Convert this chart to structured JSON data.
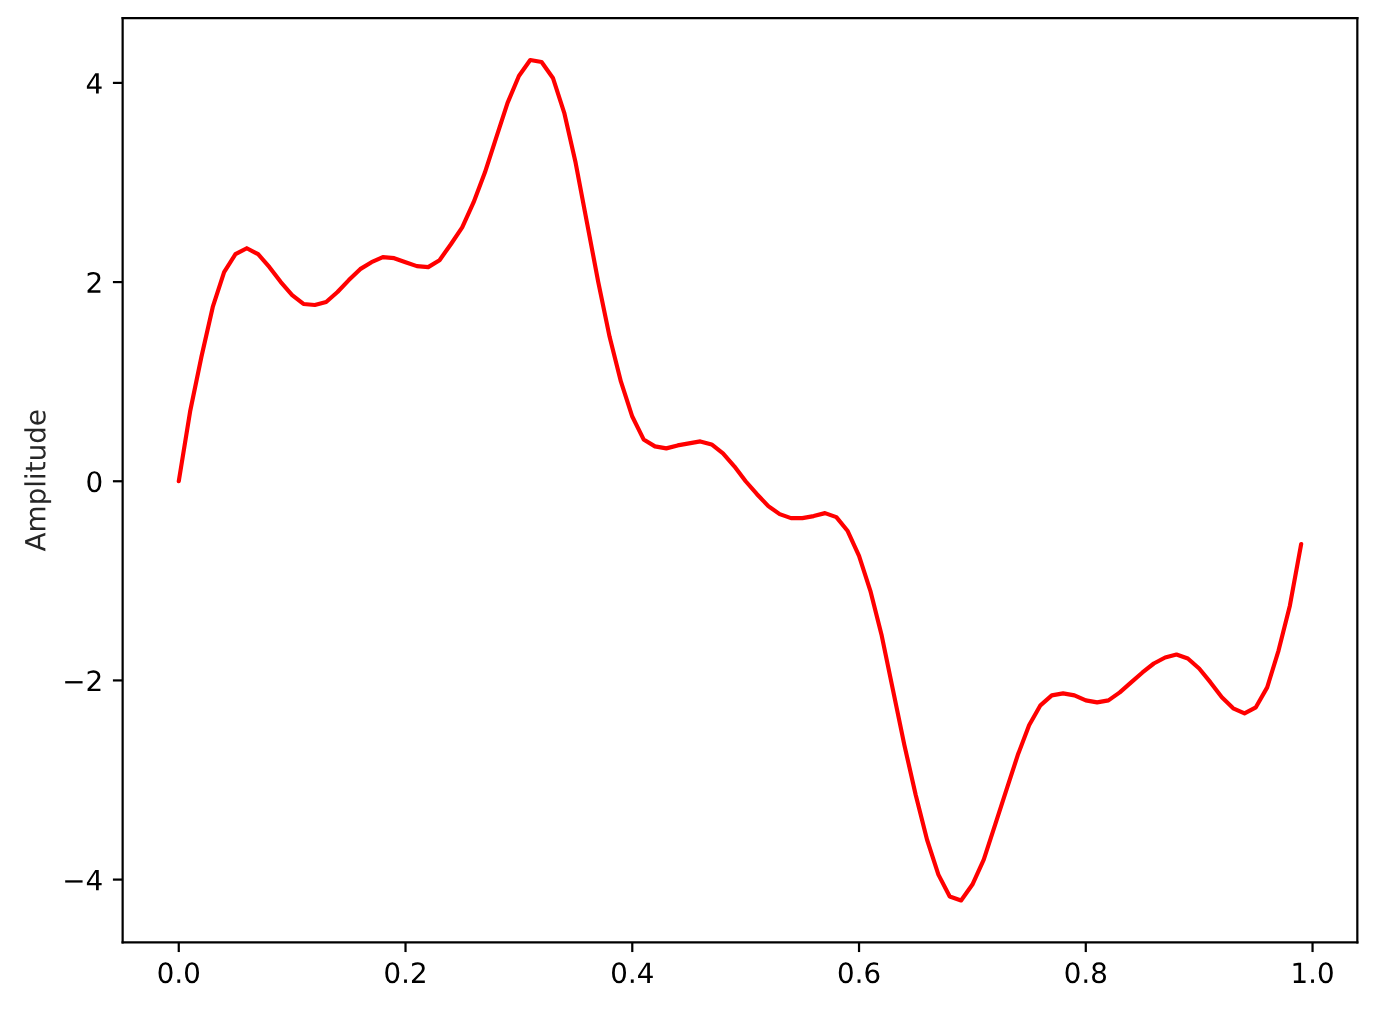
{
  "chart_data": {
    "type": "line",
    "ylabel": "Amplitude",
    "x": [
      0,
      0.01,
      0.02,
      0.03,
      0.04,
      0.05,
      0.06,
      0.07,
      0.08,
      0.09,
      0.1,
      0.11,
      0.12,
      0.13,
      0.14,
      0.15,
      0.16,
      0.17,
      0.18,
      0.19,
      0.2,
      0.21,
      0.22,
      0.23,
      0.24,
      0.25,
      0.26,
      0.27,
      0.28,
      0.29,
      0.3,
      0.31,
      0.32,
      0.33,
      0.34,
      0.35,
      0.36,
      0.37,
      0.38,
      0.39,
      0.4,
      0.41,
      0.42,
      0.43,
      0.44,
      0.45,
      0.46,
      0.47,
      0.48,
      0.49,
      0.5,
      0.51,
      0.52,
      0.53,
      0.54,
      0.55,
      0.56,
      0.57,
      0.58,
      0.59,
      0.6,
      0.61,
      0.62,
      0.63,
      0.64,
      0.65,
      0.66,
      0.67,
      0.68,
      0.69,
      0.7,
      0.71,
      0.72,
      0.73,
      0.74,
      0.75,
      0.76,
      0.77,
      0.78,
      0.79,
      0.8,
      0.81,
      0.82,
      0.83,
      0.84,
      0.85,
      0.86,
      0.87,
      0.88,
      0.89,
      0.9,
      0.91,
      0.92,
      0.93,
      0.94,
      0.95,
      0.96,
      0.97,
      0.98,
      0.99
    ],
    "series": [
      {
        "color": "#ff0000",
        "values": [
          0,
          0.7,
          1.25,
          1.75,
          2.1,
          2.28,
          2.34,
          2.28,
          2.15,
          2.0,
          1.87,
          1.78,
          1.77,
          1.8,
          1.9,
          2.02,
          2.13,
          2.2,
          2.25,
          2.24,
          2.2,
          2.16,
          2.15,
          2.22,
          2.38,
          2.55,
          2.8,
          3.1,
          3.45,
          3.8,
          4.07,
          4.23,
          4.21,
          4.05,
          3.7,
          3.2,
          2.6,
          2.0,
          1.45,
          1.0,
          0.65,
          0.42,
          0.35,
          0.33,
          0.36,
          0.38,
          0.4,
          0.37,
          0.28,
          0.15,
          0.0,
          -0.13,
          -0.25,
          -0.33,
          -0.37,
          -0.37,
          -0.35,
          -0.32,
          -0.36,
          -0.5,
          -0.75,
          -1.1,
          -1.55,
          -2.1,
          -2.65,
          -3.15,
          -3.6,
          -3.95,
          -4.17,
          -4.21,
          -4.05,
          -3.8,
          -3.45,
          -3.1,
          -2.75,
          -2.45,
          -2.25,
          -2.15,
          -2.13,
          -2.15,
          -2.2,
          -2.22,
          -2.2,
          -2.12,
          -2.02,
          -1.92,
          -1.83,
          -1.77,
          -1.74,
          -1.78,
          -1.88,
          -2.02,
          -2.17,
          -2.28,
          -2.33,
          -2.27,
          -2.07,
          -1.7,
          -1.25,
          -0.63
        ]
      }
    ],
    "xlim": [
      -0.0495,
      1.0395
    ],
    "ylim": [
      -4.63,
      4.65
    ],
    "xticks": [
      {
        "value": 0,
        "label": "0.0"
      },
      {
        "value": 0.2,
        "label": "0.2"
      },
      {
        "value": 0.4,
        "label": "0.4"
      },
      {
        "value": 0.6,
        "label": "0.6"
      },
      {
        "value": 0.8,
        "label": "0.8"
      },
      {
        "value": 1,
        "label": "1.0"
      }
    ],
    "yticks": [
      {
        "value": -4,
        "label": "−4"
      },
      {
        "value": -2,
        "label": "−2"
      },
      0,
      2,
      4
    ],
    "grid": false,
    "legend": false
  }
}
